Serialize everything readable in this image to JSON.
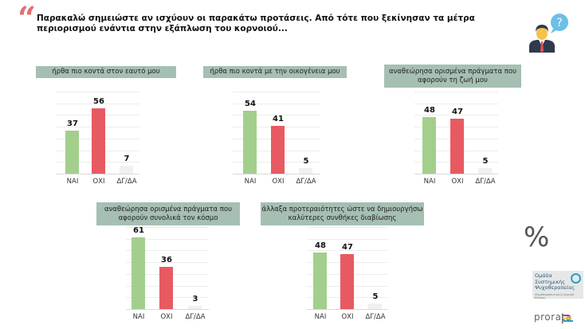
{
  "header": {
    "quote_glyph": "“",
    "title": "Παρακαλώ σημειώστε αν ισχύουν οι παρακάτω προτάσεις. Από τότε που ξεκίνησαν τα μέτρα περιορισμού ενάντια στην εξάπλωση του κορνοιού...",
    "icon": "person-question-icon"
  },
  "colors": {
    "yes": "#a3cf8c",
    "no": "#e85a62",
    "dk": "#f0f0f0",
    "label_bg": "#a6bfb3"
  },
  "side": {
    "percent_symbol": "%",
    "logo1_lines": [
      "Ομάδα",
      "Συστημικής",
      "Ψυχοθεραπείας"
    ],
    "logo1_sub": "Ψυχοθεραπευτικό & Ιατρικό Κέντρο",
    "logo2": "prorata"
  },
  "chart_data": [
    {
      "type": "bar",
      "title": "ήρθα πιο κοντά στον εαυτό μου",
      "categories": [
        "ΝΑΙ",
        "ΟΧΙ",
        "ΔΓ/ΔΑ"
      ],
      "values": [
        37,
        56,
        7
      ],
      "ylabel": "%",
      "ylim": [
        0,
        70
      ],
      "grid": true
    },
    {
      "type": "bar",
      "title": "ήρθα πιο κοντά με την οικογένεια μου",
      "categories": [
        "ΝΑΙ",
        "ΟΧΙ",
        "ΔΓ/ΔΑ"
      ],
      "values": [
        54,
        41,
        5
      ],
      "ylabel": "%",
      "ylim": [
        0,
        70
      ],
      "grid": true
    },
    {
      "type": "bar",
      "title": "αναθεώρησα ορισμένα πράγματα που αφορούν τη ζωή μου",
      "categories": [
        "ΝΑΙ",
        "ΟΧΙ",
        "ΔΓ/ΔΑ"
      ],
      "values": [
        48,
        47,
        5
      ],
      "ylabel": "%",
      "ylim": [
        0,
        70
      ],
      "grid": true
    },
    {
      "type": "bar",
      "title": "αναθεώρησα ορισμένα πράγματα που αφορούν συνολικά τον κόσμο",
      "categories": [
        "ΝΑΙ",
        "ΟΧΙ",
        "ΔΓ/ΔΑ"
      ],
      "values": [
        61,
        36,
        3
      ],
      "ylabel": "%",
      "ylim": [
        0,
        70
      ],
      "grid": true
    },
    {
      "type": "bar",
      "title": "άλλαξα προτεραιότητες ώστε να δημιουργήσω καλύτερες συνθήκες διαβίωσης",
      "categories": [
        "ΝΑΙ",
        "ΟΧΙ",
        "ΔΓ/ΔΑ"
      ],
      "values": [
        48,
        47,
        5
      ],
      "ylabel": "%",
      "ylim": [
        0,
        70
      ],
      "grid": true
    }
  ]
}
